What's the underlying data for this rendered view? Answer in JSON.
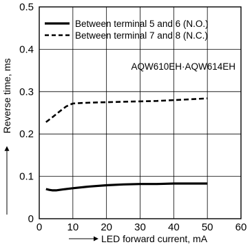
{
  "chart_data": {
    "type": "line",
    "xlabel": "LED forward current, mA",
    "ylabel": "Reverse time, ms",
    "xlim": [
      0,
      60
    ],
    "ylim": [
      0,
      0.5
    ],
    "xticks": [
      0,
      10,
      20,
      30,
      40,
      50,
      60
    ],
    "yticks": [
      0,
      0.1,
      0.2,
      0.3,
      0.4,
      0.5
    ],
    "xtick_labels": [
      "0",
      "10",
      "20",
      "30",
      "40",
      "50",
      "60"
    ],
    "ytick_labels": [
      "0",
      "0.1",
      "0.2",
      "0.3",
      "0.4",
      "0.5"
    ],
    "grid": true,
    "legend_position": "top",
    "annotation": "AQW610EH·AQW614EH",
    "series": [
      {
        "name": "Between terminal 5 and 6 (N.O.)",
        "style": "solid",
        "x": [
          2,
          3,
          4,
          5,
          7,
          10,
          15,
          20,
          25,
          30,
          35,
          40,
          45,
          50
        ],
        "y": [
          0.07,
          0.068,
          0.067,
          0.067,
          0.069,
          0.072,
          0.076,
          0.079,
          0.081,
          0.082,
          0.082,
          0.083,
          0.083,
          0.083
        ]
      },
      {
        "name": "Between terminal 7 and 8 (N.C.)",
        "style": "dashed",
        "x": [
          2,
          4,
          6,
          8,
          10,
          12,
          15,
          20,
          25,
          30,
          35,
          40,
          45,
          50
        ],
        "y": [
          0.228,
          0.24,
          0.253,
          0.265,
          0.272,
          0.273,
          0.274,
          0.275,
          0.276,
          0.277,
          0.278,
          0.28,
          0.282,
          0.284
        ]
      }
    ]
  }
}
